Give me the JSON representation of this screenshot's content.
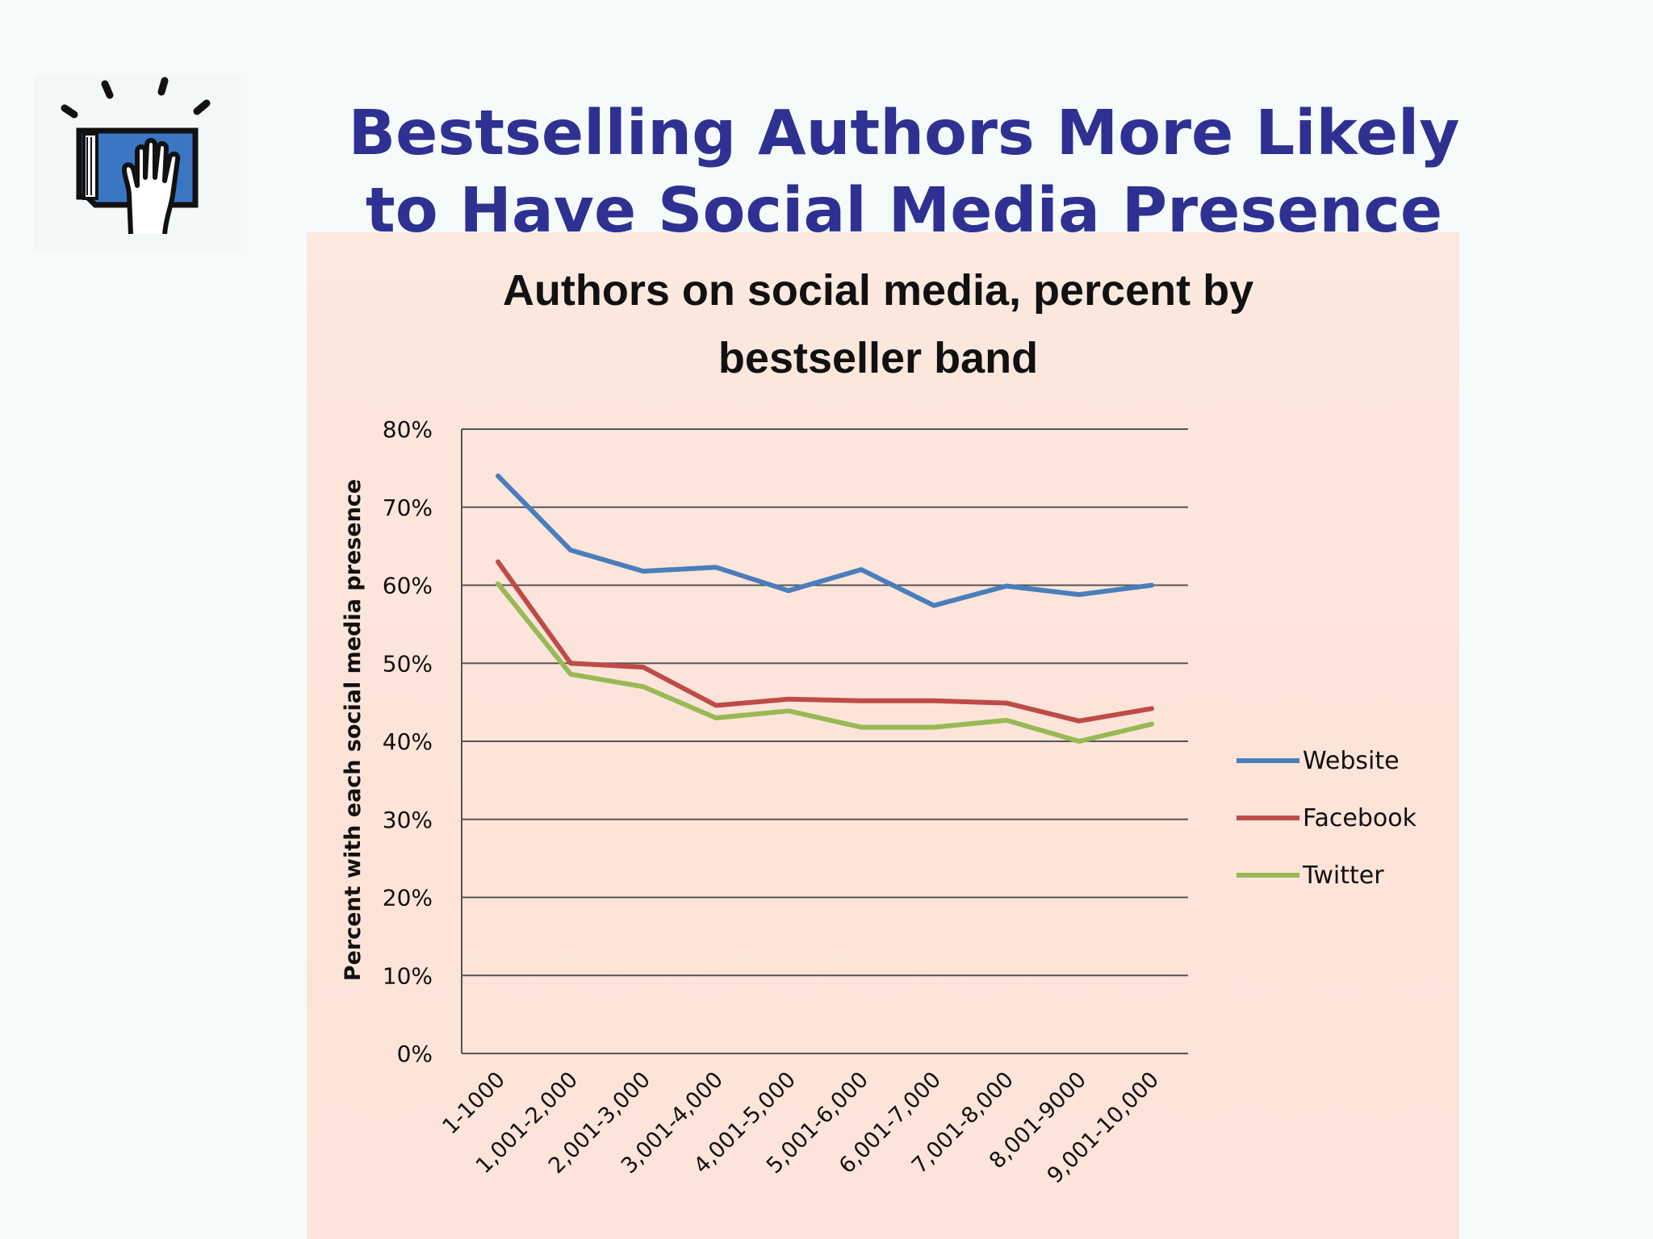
{
  "slide": {
    "title_line1": "Bestselling Authors More Likely",
    "title_line2": "to Have Social Media Presence",
    "logo_icon": "book-with-raised-hand-icon"
  },
  "colors": {
    "title": "#2e3192",
    "website": "#4a7ebb",
    "facebook": "#be4b48",
    "twitter": "#98b954"
  },
  "chart_data": {
    "type": "line",
    "title_line1": "Authors on social media, percent by",
    "title_line2": "bestseller band",
    "xlabel": "",
    "ylabel": "Percent with each social media presence",
    "ylim": [
      0,
      80
    ],
    "yticks": [
      "0%",
      "10%",
      "20%",
      "30%",
      "40%",
      "50%",
      "60%",
      "70%",
      "80%"
    ],
    "ytick_values": [
      0,
      10,
      20,
      30,
      40,
      50,
      60,
      70,
      80
    ],
    "grid": true,
    "legend_position": "right",
    "categories": [
      "1-1000",
      "1,001-2,000",
      "2,001-3,000",
      "3,001-4,000",
      "4,001-5,000",
      "5,001-6,000",
      "6,001-7,000",
      "7,001-8,000",
      "8,001-9000",
      "9,001-10,000"
    ],
    "series": [
      {
        "name": "Website",
        "color": "#4a7ebb",
        "values": [
          74,
          64.5,
          61.8,
          62.3,
          59.3,
          62,
          57.4,
          59.9,
          58.8,
          60
        ]
      },
      {
        "name": "Facebook",
        "color": "#be4b48",
        "values": [
          63,
          50,
          49.5,
          44.6,
          45.4,
          45.2,
          45.2,
          44.9,
          42.6,
          44.2
        ]
      },
      {
        "name": "Twitter",
        "color": "#98b954",
        "values": [
          60.2,
          48.6,
          47,
          43,
          43.9,
          41.8,
          41.8,
          42.7,
          40,
          42.2
        ]
      }
    ]
  }
}
